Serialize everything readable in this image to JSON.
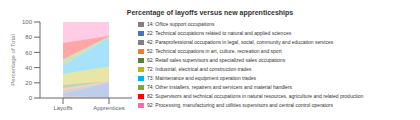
{
  "chart_data": {
    "type": "bar",
    "stacked": true,
    "title": "Percentage of layoffs versus new apprenticeships",
    "ylabel": "Percentage of Total",
    "categories": [
      "Layoffs",
      "Apprentices"
    ],
    "series": [
      {
        "name": "14: Office support occupations",
        "color": "#808080",
        "values": [
          3.0,
          0.5
        ]
      },
      {
        "name": "22: Technical occupations related to natural and applied sciences",
        "color": "#4472C4",
        "values": [
          2.5,
          20.0
        ]
      },
      {
        "name": "42: Paraprofessional occupations in legal, social, community and education services",
        "color": "#808080",
        "values": [
          4.5,
          0.5
        ]
      },
      {
        "name": "52: Technical occupations in art, culture, recreation and sport",
        "color": "#ED7D31",
        "values": [
          2.5,
          1.0
        ]
      },
      {
        "name": "62: Retail sales supervisors and specialized sales occupations",
        "color": "#548235",
        "values": [
          5.0,
          0.5
        ]
      },
      {
        "name": "72: Industrial, electrical and construction trades",
        "color": "#BDB800",
        "values": [
          14.0,
          19.0
        ]
      },
      {
        "name": "73: Maintenance and equipment operation trades",
        "color": "#00B0F0",
        "values": [
          11.0,
          38.0
        ]
      },
      {
        "name": "74: Other installers, repairers and servicers and material handlers",
        "color": "#70AD47",
        "values": [
          8.0,
          1.5
        ]
      },
      {
        "name": "82: Supervisors and technical occupations in natural resources, agriculture and related production",
        "color": "#FF0000",
        "values": [
          22.0,
          1.0
        ]
      },
      {
        "name": "92: Processing, manufacturing and utilities supervisors and central control operators",
        "color": "#FF69B4",
        "values": [
          27.5,
          18.0
        ]
      }
    ],
    "ylim": [
      0,
      100
    ],
    "yticks": [
      0,
      20,
      40,
      60,
      80,
      100
    ],
    "grid": false,
    "legend": "right"
  }
}
